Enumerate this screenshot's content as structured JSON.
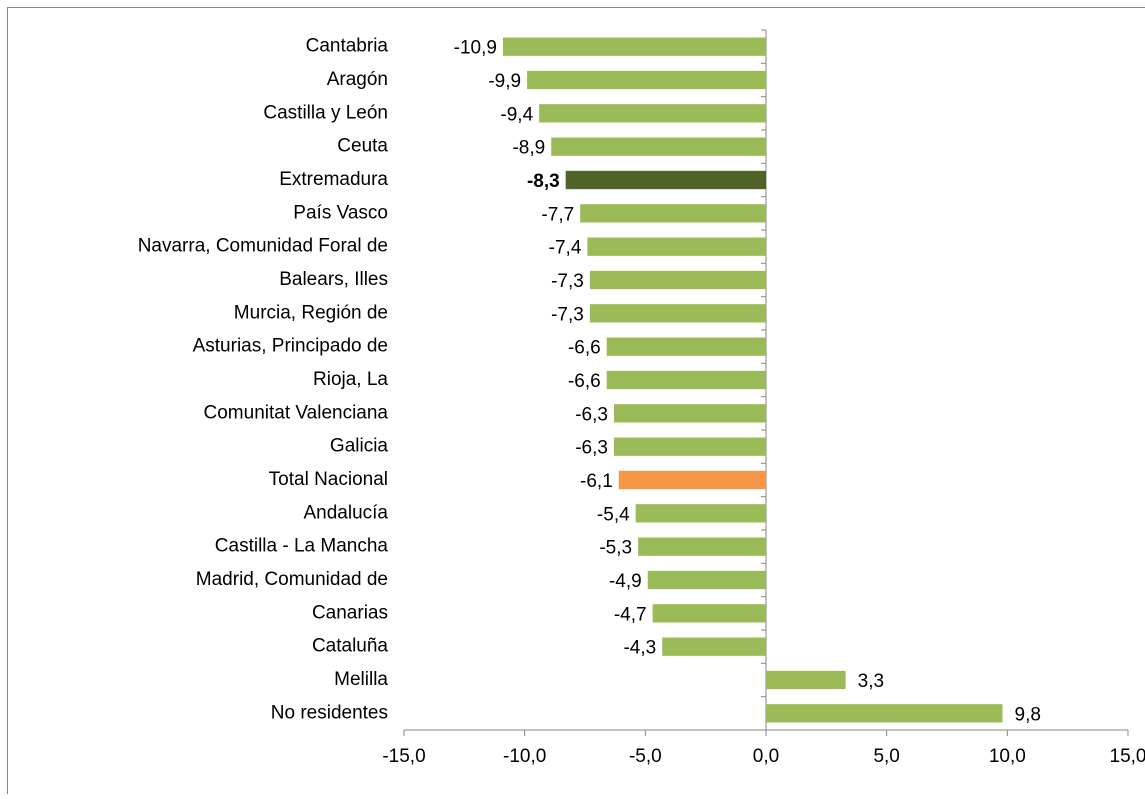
{
  "chart_data": {
    "type": "bar",
    "orientation": "horizontal",
    "categories": [
      "Cantabria",
      "Aragón",
      "Castilla y León",
      "Ceuta",
      "Extremadura",
      "País Vasco",
      "Navarra, Comunidad Foral de",
      "Balears, Illes",
      "Murcia, Región de",
      "Asturias, Principado de",
      "Rioja, La",
      "Comunitat Valenciana",
      "Galicia",
      "Total Nacional",
      "Andalucía",
      "Castilla - La Mancha",
      "Madrid, Comunidad de",
      "Canarias",
      "Cataluña",
      "Melilla",
      "No residentes"
    ],
    "values": [
      -10.9,
      -9.9,
      -9.4,
      -8.9,
      -8.3,
      -7.7,
      -7.4,
      -7.3,
      -7.3,
      -6.6,
      -6.6,
      -6.3,
      -6.3,
      -6.1,
      -5.4,
      -5.3,
      -4.9,
      -4.7,
      -4.3,
      3.3,
      9.8
    ],
    "value_labels": [
      "-10,9",
      "-9,9",
      "-9,4",
      "-8,9",
      "-8,3",
      "-7,7",
      "-7,4",
      "-7,3",
      "-7,3",
      "-6,6",
      "-6,6",
      "-6,3",
      "-6,3",
      "-6,1",
      "-5,4",
      "-5,3",
      "-4,9",
      "-4,7",
      "-4,3",
      "3,3",
      "9,8"
    ],
    "colors": [
      "#9bbb59",
      "#9bbb59",
      "#9bbb59",
      "#9bbb59",
      "#4f6228",
      "#9bbb59",
      "#9bbb59",
      "#9bbb59",
      "#9bbb59",
      "#9bbb59",
      "#9bbb59",
      "#9bbb59",
      "#9bbb59",
      "#f79646",
      "#9bbb59",
      "#9bbb59",
      "#9bbb59",
      "#9bbb59",
      "#9bbb59",
      "#9bbb59",
      "#9bbb59"
    ],
    "bold_value_labels": [
      "Extremadura"
    ],
    "xlim": [
      -15,
      15
    ],
    "xticks": [
      {
        "value": -15,
        "label": "-15,0"
      },
      {
        "value": -10,
        "label": "-10,0"
      },
      {
        "value": -5,
        "label": "-5,0"
      },
      {
        "value": 0,
        "label": "0,0"
      },
      {
        "value": 5,
        "label": "5,0"
      },
      {
        "value": 10,
        "label": "10,0"
      },
      {
        "value": 15,
        "label": "15,0"
      }
    ],
    "grid": false
  }
}
